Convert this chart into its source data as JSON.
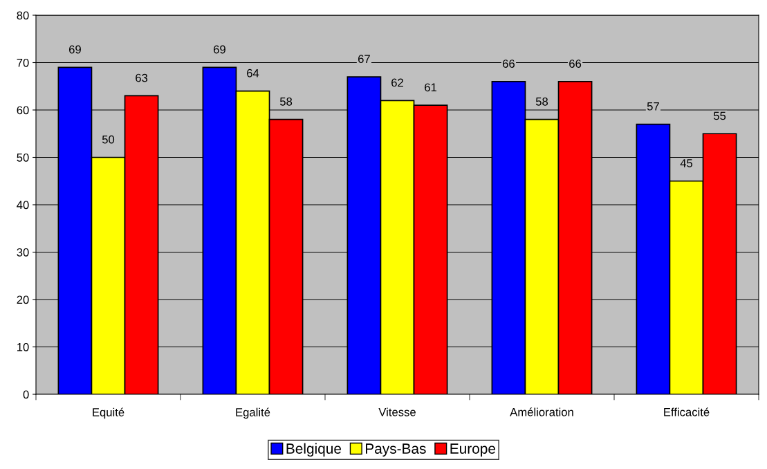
{
  "chart_data": {
    "type": "bar",
    "categories": [
      "Equité",
      "Egalité",
      "Vitesse",
      "Amélioration",
      "Efficacité"
    ],
    "series": [
      {
        "name": "Belgique",
        "color": "#0000ff",
        "values": [
          69,
          69,
          67,
          66,
          57
        ]
      },
      {
        "name": "Pays-Bas",
        "color": "#ffff00",
        "values": [
          50,
          64,
          62,
          58,
          45
        ]
      },
      {
        "name": "Europe",
        "color": "#ff0000",
        "values": [
          63,
          58,
          61,
          66,
          55
        ]
      }
    ],
    "ylim": [
      0,
      80
    ],
    "yticks": [
      0,
      10,
      20,
      30,
      40,
      50,
      60,
      70,
      80
    ],
    "grid": "y",
    "legend": "bottom",
    "data_labels": true
  }
}
